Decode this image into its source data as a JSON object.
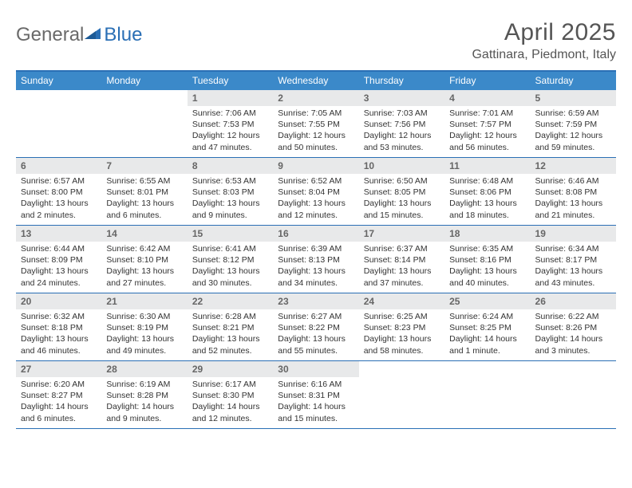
{
  "brand": {
    "part1": "General",
    "part2": "Blue"
  },
  "title": "April 2025",
  "location": "Gattinara, Piedmont, Italy",
  "colors": {
    "header_bg": "#3b89c9",
    "border": "#2a6fb5",
    "daynum_bg": "#e8e9ea",
    "text": "#333333",
    "title": "#555555",
    "logo_gray": "#6a6a6a"
  },
  "dow": [
    "Sunday",
    "Monday",
    "Tuesday",
    "Wednesday",
    "Thursday",
    "Friday",
    "Saturday"
  ],
  "weeks": [
    [
      null,
      null,
      {
        "n": "1",
        "sr": "Sunrise: 7:06 AM",
        "ss": "Sunset: 7:53 PM",
        "d1": "Daylight: 12 hours",
        "d2": "and 47 minutes."
      },
      {
        "n": "2",
        "sr": "Sunrise: 7:05 AM",
        "ss": "Sunset: 7:55 PM",
        "d1": "Daylight: 12 hours",
        "d2": "and 50 minutes."
      },
      {
        "n": "3",
        "sr": "Sunrise: 7:03 AM",
        "ss": "Sunset: 7:56 PM",
        "d1": "Daylight: 12 hours",
        "d2": "and 53 minutes."
      },
      {
        "n": "4",
        "sr": "Sunrise: 7:01 AM",
        "ss": "Sunset: 7:57 PM",
        "d1": "Daylight: 12 hours",
        "d2": "and 56 minutes."
      },
      {
        "n": "5",
        "sr": "Sunrise: 6:59 AM",
        "ss": "Sunset: 7:59 PM",
        "d1": "Daylight: 12 hours",
        "d2": "and 59 minutes."
      }
    ],
    [
      {
        "n": "6",
        "sr": "Sunrise: 6:57 AM",
        "ss": "Sunset: 8:00 PM",
        "d1": "Daylight: 13 hours",
        "d2": "and 2 minutes."
      },
      {
        "n": "7",
        "sr": "Sunrise: 6:55 AM",
        "ss": "Sunset: 8:01 PM",
        "d1": "Daylight: 13 hours",
        "d2": "and 6 minutes."
      },
      {
        "n": "8",
        "sr": "Sunrise: 6:53 AM",
        "ss": "Sunset: 8:03 PM",
        "d1": "Daylight: 13 hours",
        "d2": "and 9 minutes."
      },
      {
        "n": "9",
        "sr": "Sunrise: 6:52 AM",
        "ss": "Sunset: 8:04 PM",
        "d1": "Daylight: 13 hours",
        "d2": "and 12 minutes."
      },
      {
        "n": "10",
        "sr": "Sunrise: 6:50 AM",
        "ss": "Sunset: 8:05 PM",
        "d1": "Daylight: 13 hours",
        "d2": "and 15 minutes."
      },
      {
        "n": "11",
        "sr": "Sunrise: 6:48 AM",
        "ss": "Sunset: 8:06 PM",
        "d1": "Daylight: 13 hours",
        "d2": "and 18 minutes."
      },
      {
        "n": "12",
        "sr": "Sunrise: 6:46 AM",
        "ss": "Sunset: 8:08 PM",
        "d1": "Daylight: 13 hours",
        "d2": "and 21 minutes."
      }
    ],
    [
      {
        "n": "13",
        "sr": "Sunrise: 6:44 AM",
        "ss": "Sunset: 8:09 PM",
        "d1": "Daylight: 13 hours",
        "d2": "and 24 minutes."
      },
      {
        "n": "14",
        "sr": "Sunrise: 6:42 AM",
        "ss": "Sunset: 8:10 PM",
        "d1": "Daylight: 13 hours",
        "d2": "and 27 minutes."
      },
      {
        "n": "15",
        "sr": "Sunrise: 6:41 AM",
        "ss": "Sunset: 8:12 PM",
        "d1": "Daylight: 13 hours",
        "d2": "and 30 minutes."
      },
      {
        "n": "16",
        "sr": "Sunrise: 6:39 AM",
        "ss": "Sunset: 8:13 PM",
        "d1": "Daylight: 13 hours",
        "d2": "and 34 minutes."
      },
      {
        "n": "17",
        "sr": "Sunrise: 6:37 AM",
        "ss": "Sunset: 8:14 PM",
        "d1": "Daylight: 13 hours",
        "d2": "and 37 minutes."
      },
      {
        "n": "18",
        "sr": "Sunrise: 6:35 AM",
        "ss": "Sunset: 8:16 PM",
        "d1": "Daylight: 13 hours",
        "d2": "and 40 minutes."
      },
      {
        "n": "19",
        "sr": "Sunrise: 6:34 AM",
        "ss": "Sunset: 8:17 PM",
        "d1": "Daylight: 13 hours",
        "d2": "and 43 minutes."
      }
    ],
    [
      {
        "n": "20",
        "sr": "Sunrise: 6:32 AM",
        "ss": "Sunset: 8:18 PM",
        "d1": "Daylight: 13 hours",
        "d2": "and 46 minutes."
      },
      {
        "n": "21",
        "sr": "Sunrise: 6:30 AM",
        "ss": "Sunset: 8:19 PM",
        "d1": "Daylight: 13 hours",
        "d2": "and 49 minutes."
      },
      {
        "n": "22",
        "sr": "Sunrise: 6:28 AM",
        "ss": "Sunset: 8:21 PM",
        "d1": "Daylight: 13 hours",
        "d2": "and 52 minutes."
      },
      {
        "n": "23",
        "sr": "Sunrise: 6:27 AM",
        "ss": "Sunset: 8:22 PM",
        "d1": "Daylight: 13 hours",
        "d2": "and 55 minutes."
      },
      {
        "n": "24",
        "sr": "Sunrise: 6:25 AM",
        "ss": "Sunset: 8:23 PM",
        "d1": "Daylight: 13 hours",
        "d2": "and 58 minutes."
      },
      {
        "n": "25",
        "sr": "Sunrise: 6:24 AM",
        "ss": "Sunset: 8:25 PM",
        "d1": "Daylight: 14 hours",
        "d2": "and 1 minute."
      },
      {
        "n": "26",
        "sr": "Sunrise: 6:22 AM",
        "ss": "Sunset: 8:26 PM",
        "d1": "Daylight: 14 hours",
        "d2": "and 3 minutes."
      }
    ],
    [
      {
        "n": "27",
        "sr": "Sunrise: 6:20 AM",
        "ss": "Sunset: 8:27 PM",
        "d1": "Daylight: 14 hours",
        "d2": "and 6 minutes."
      },
      {
        "n": "28",
        "sr": "Sunrise: 6:19 AM",
        "ss": "Sunset: 8:28 PM",
        "d1": "Daylight: 14 hours",
        "d2": "and 9 minutes."
      },
      {
        "n": "29",
        "sr": "Sunrise: 6:17 AM",
        "ss": "Sunset: 8:30 PM",
        "d1": "Daylight: 14 hours",
        "d2": "and 12 minutes."
      },
      {
        "n": "30",
        "sr": "Sunrise: 6:16 AM",
        "ss": "Sunset: 8:31 PM",
        "d1": "Daylight: 14 hours",
        "d2": "and 15 minutes."
      },
      null,
      null,
      null
    ]
  ]
}
